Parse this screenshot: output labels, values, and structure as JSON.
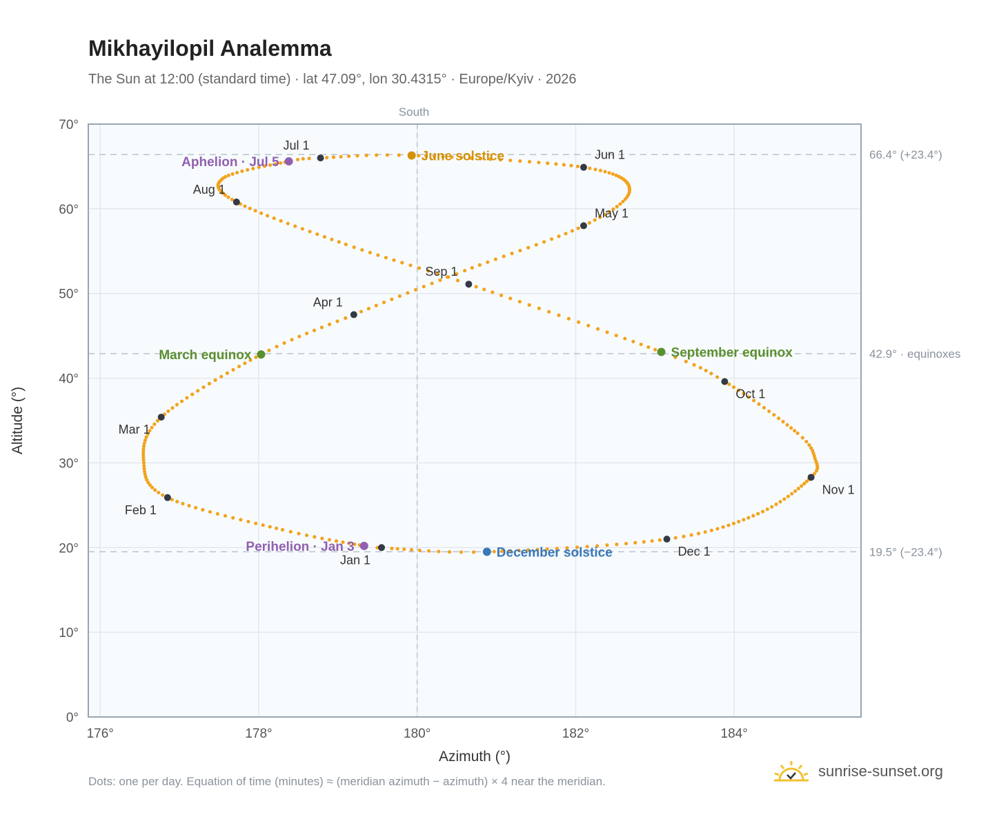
{
  "header": {
    "title": "Mikhayilopil Analemma",
    "subtitle": "The Sun at 12:00 (standard time) · lat 47.09°, lon 30.4315° · Europe/Kyiv · 2026"
  },
  "footer": {
    "note": "Dots: one per day. Equation of time (minutes) ≈ (meridian azimuth − azimuth) × 4 near the meridian.",
    "brand": "sunrise-sunset.org"
  },
  "colors": {
    "path": "#f2a31f",
    "month": "#333a44",
    "june": "#d4920a",
    "equinox": "#5a8f2e",
    "december": "#3a78b8",
    "apsis": "#9060b0",
    "plot_bg": "#f8fbfd",
    "grid": "#e3e8ee",
    "frame": "#9aa5b1",
    "ref": "#b8c2cc"
  },
  "chart_data": {
    "type": "scatter",
    "xlabel": "Azimuth (°)",
    "ylabel": "Altitude (°)",
    "xlim": [
      175.85,
      185.6
    ],
    "ylim": [
      0,
      70
    ],
    "xticks": [
      176,
      178,
      180,
      182,
      184
    ],
    "yticks": [
      0,
      10,
      20,
      30,
      40,
      50,
      60,
      70
    ],
    "tick_suffix": "°",
    "grid": true,
    "meridian": {
      "azimuth": 180,
      "label": "South"
    },
    "ref_lines": [
      {
        "altitude": 66.4,
        "label": "66.4° (+23.4°)"
      },
      {
        "altitude": 42.9,
        "label": "42.9° · equinoxes"
      },
      {
        "altitude": 19.5,
        "label": "19.5° (−23.4°)"
      }
    ],
    "path_points_day_of_year": [
      {
        "doy": 1,
        "az": 179.55,
        "alt": 20.0
      },
      {
        "doy": 3,
        "az": 179.33,
        "alt": 20.2
      },
      {
        "doy": 15,
        "az": 178.3,
        "alt": 22.1
      },
      {
        "doy": 32,
        "az": 176.85,
        "alt": 25.9
      },
      {
        "doy": 45,
        "az": 176.55,
        "alt": 30.0
      },
      {
        "doy": 60,
        "az": 176.77,
        "alt": 35.4
      },
      {
        "doy": 79,
        "az": 178.03,
        "alt": 42.8
      },
      {
        "doy": 91,
        "az": 179.2,
        "alt": 47.5
      },
      {
        "doy": 105,
        "az": 180.6,
        "alt": 52.7
      },
      {
        "doy": 121,
        "az": 182.1,
        "alt": 58.0
      },
      {
        "doy": 135,
        "az": 182.68,
        "alt": 62.2
      },
      {
        "doy": 152,
        "az": 182.1,
        "alt": 64.9
      },
      {
        "doy": 172,
        "az": 179.93,
        "alt": 66.3
      },
      {
        "doy": 182,
        "az": 178.78,
        "alt": 66.0
      },
      {
        "doy": 186,
        "az": 178.38,
        "alt": 65.6
      },
      {
        "doy": 200,
        "az": 177.55,
        "alt": 63.6
      },
      {
        "doy": 213,
        "az": 177.72,
        "alt": 60.8
      },
      {
        "doy": 230,
        "az": 179.1,
        "alt": 55.8
      },
      {
        "doy": 244,
        "az": 180.65,
        "alt": 51.1
      },
      {
        "doy": 266,
        "az": 183.08,
        "alt": 43.1
      },
      {
        "doy": 274,
        "az": 183.88,
        "alt": 39.6
      },
      {
        "doy": 290,
        "az": 184.8,
        "alt": 33.5
      },
      {
        "doy": 298,
        "az": 185.02,
        "alt": 30.5
      },
      {
        "doy": 305,
        "az": 184.97,
        "alt": 28.3
      },
      {
        "doy": 320,
        "az": 184.3,
        "alt": 24.0
      },
      {
        "doy": 335,
        "az": 183.15,
        "alt": 21.0
      },
      {
        "doy": 355,
        "az": 180.88,
        "alt": 19.5
      },
      {
        "doy": 365,
        "az": 179.68,
        "alt": 19.9
      }
    ],
    "months": [
      {
        "label": "Jan 1",
        "az": 179.55,
        "alt": 20.0,
        "pos": "below-left"
      },
      {
        "label": "Feb 1",
        "az": 176.85,
        "alt": 25.9,
        "pos": "below-left"
      },
      {
        "label": "Mar 1",
        "az": 176.77,
        "alt": 35.4,
        "pos": "below-left"
      },
      {
        "label": "Apr 1",
        "az": 179.2,
        "alt": 47.5,
        "pos": "above-left"
      },
      {
        "label": "May 1",
        "az": 182.1,
        "alt": 58.0,
        "pos": "above-right"
      },
      {
        "label": "Jun 1",
        "az": 182.1,
        "alt": 64.9,
        "pos": "above-right"
      },
      {
        "label": "Jul 1",
        "az": 178.78,
        "alt": 66.0,
        "pos": "above-left"
      },
      {
        "label": "Aug 1",
        "az": 177.72,
        "alt": 60.8,
        "pos": "above-left"
      },
      {
        "label": "Sep 1",
        "az": 180.65,
        "alt": 51.1,
        "pos": "above-left"
      },
      {
        "label": "Oct 1",
        "az": 183.88,
        "alt": 39.6,
        "pos": "below-right"
      },
      {
        "label": "Nov 1",
        "az": 184.97,
        "alt": 28.3,
        "pos": "below-right"
      },
      {
        "label": "Dec 1",
        "az": 183.15,
        "alt": 21.0,
        "pos": "below-right"
      }
    ],
    "events": [
      {
        "label": "June solstice",
        "az": 179.93,
        "alt": 66.3,
        "color_key": "june",
        "pos": "right"
      },
      {
        "label": "March equinox",
        "az": 178.03,
        "alt": 42.8,
        "color_key": "equinox",
        "pos": "left"
      },
      {
        "label": "September equinox",
        "az": 183.08,
        "alt": 43.1,
        "color_key": "equinox",
        "pos": "right"
      },
      {
        "label": "December solstice",
        "az": 180.88,
        "alt": 19.5,
        "color_key": "december",
        "pos": "right"
      },
      {
        "label": "Aphelion · Jul 5",
        "az": 178.38,
        "alt": 65.6,
        "color_key": "apsis",
        "pos": "left"
      },
      {
        "label": "Perihelion · Jan 3",
        "az": 179.33,
        "alt": 20.2,
        "color_key": "apsis",
        "pos": "left"
      }
    ]
  }
}
